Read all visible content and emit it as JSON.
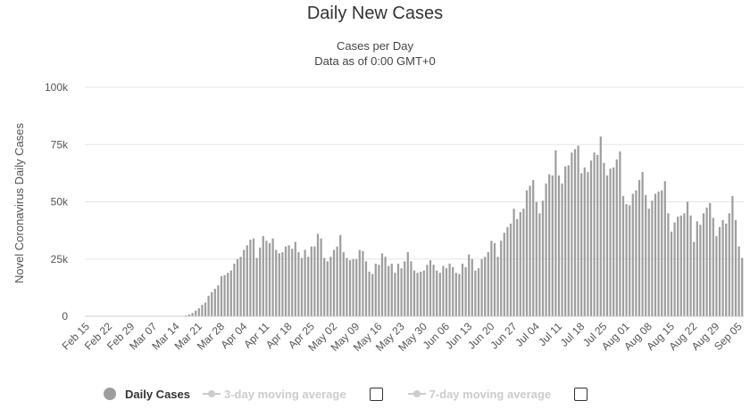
{
  "chart_data": {
    "type": "bar",
    "title": "Daily New Cases",
    "subtitle": [
      "Cases per Day",
      "Data as of 0:00 GMT+0"
    ],
    "ylabel": "Novel Coronavirus Daily Cases",
    "ylim": [
      0,
      100000
    ],
    "yticks": [
      0,
      25000,
      50000,
      75000,
      100000
    ],
    "ytick_labels": [
      "0",
      "25k",
      "50k",
      "75k",
      "100k"
    ],
    "x_start": "2020-02-15",
    "x_tick_labels": [
      "Feb 15",
      "Feb 22",
      "Feb 29",
      "Mar 07",
      "Mar 14",
      "Mar 21",
      "Mar 28",
      "Apr 04",
      "Apr 11",
      "Apr 18",
      "Apr 25",
      "May 02",
      "May 09",
      "May 16",
      "May 23",
      "May 30",
      "Jun 06",
      "Jun 13",
      "Jun 20",
      "Jun 27",
      "Jul 04",
      "Jul 11",
      "Jul 18",
      "Jul 25",
      "Aug 01",
      "Aug 08",
      "Aug 15",
      "Aug 22",
      "Aug 29",
      "Sep 05"
    ],
    "grid": true,
    "legend_position": "bottom",
    "series": [
      {
        "name": "Daily Cases",
        "color": "#9e9e9e",
        "values": [
          0,
          0,
          0,
          0,
          0,
          0,
          0,
          0,
          0,
          0,
          0,
          0,
          0,
          0,
          0,
          0,
          0,
          0,
          0,
          0,
          0,
          0,
          0,
          0,
          0,
          0,
          0,
          0,
          0,
          100,
          200,
          400,
          800,
          1500,
          2500,
          3500,
          5000,
          6000,
          9000,
          10500,
          12000,
          13500,
          17500,
          18000,
          19000,
          20000,
          23000,
          25000,
          26000,
          29000,
          31000,
          33500,
          34000,
          25500,
          30000,
          35000,
          33000,
          32000,
          34000,
          29000,
          27500,
          28000,
          30500,
          31000,
          29500,
          32500,
          28000,
          25500,
          29000,
          26000,
          30500,
          30500,
          36000,
          34000,
          25500,
          24000,
          26000,
          29000,
          30500,
          35500,
          28000,
          25500,
          24500,
          25000,
          25000,
          29000,
          28500,
          24000,
          19500,
          18500,
          23000,
          22500,
          27500,
          26000,
          22000,
          23000,
          19000,
          23000,
          21000,
          24000,
          28000,
          24000,
          20000,
          19000,
          19500,
          20000,
          22500,
          24500,
          22500,
          20000,
          19000,
          22000,
          21000,
          23000,
          21500,
          19000,
          18500,
          23000,
          21500,
          27000,
          25000,
          20000,
          21000,
          25000,
          26000,
          28000,
          33000,
          32000,
          26000,
          33000,
          36500,
          39000,
          40500,
          47000,
          42500,
          45500,
          47000,
          55000,
          57000,
          59500,
          50000,
          45000,
          50500,
          58000,
          62000,
          61500,
          72500,
          61500,
          58000,
          65500,
          66000,
          71500,
          73000,
          74500,
          62500,
          65000,
          63000,
          68000,
          71500,
          70500,
          78500,
          67000,
          61500,
          64500,
          65000,
          68500,
          72000,
          52500,
          49000,
          48500,
          53500,
          55000,
          59500,
          63000,
          53000,
          47000,
          50500,
          53500,
          54500,
          55000,
          59000,
          45000,
          37000,
          41000,
          43500,
          44000,
          45000,
          50000,
          44000,
          32500,
          41500,
          40000,
          45000,
          47500,
          49500,
          43000,
          35000,
          39000,
          42000,
          40500,
          45000,
          52500,
          42000,
          30500,
          25500
        ]
      }
    ],
    "legend": [
      {
        "label": "Daily Cases",
        "enabled": true,
        "icon": "filled-circle-icon"
      },
      {
        "label": "3-day moving average",
        "enabled": false,
        "icon": "line-marker-icon"
      },
      {
        "label": "7-day moving average",
        "enabled": false,
        "icon": "line-marker-icon"
      }
    ]
  }
}
